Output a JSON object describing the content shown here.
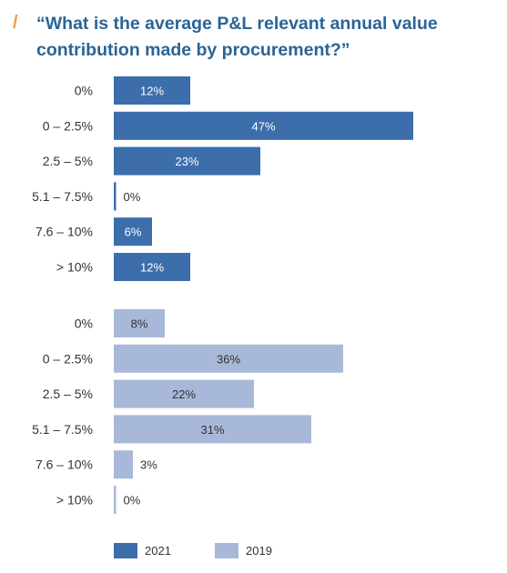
{
  "title": "“What is the average P&L relevant annual value contribution made by procurement?”",
  "title_mark": "/",
  "chart_data": {
    "type": "bar",
    "orientation": "horizontal",
    "title": "“What is the average P&L relevant annual value contribution made by procurement?”",
    "categories": [
      "0%",
      "0 – 2.5%",
      "2.5 – 5%",
      "5.1 – 7.5%",
      "7.6 – 10%",
      "> 10%"
    ],
    "value_suffix": "%",
    "series": [
      {
        "name": "2021",
        "color": "#3c6eab",
        "label_color": "#ffffff",
        "values": [
          12,
          47,
          23,
          0,
          6,
          12
        ]
      },
      {
        "name": "2019",
        "color": "#a8b8d8",
        "label_color": "#333333",
        "values": [
          8,
          36,
          22,
          31,
          3,
          0
        ]
      }
    ],
    "xlim": [
      0,
      47
    ],
    "grid": false,
    "legend_position": "bottom"
  }
}
